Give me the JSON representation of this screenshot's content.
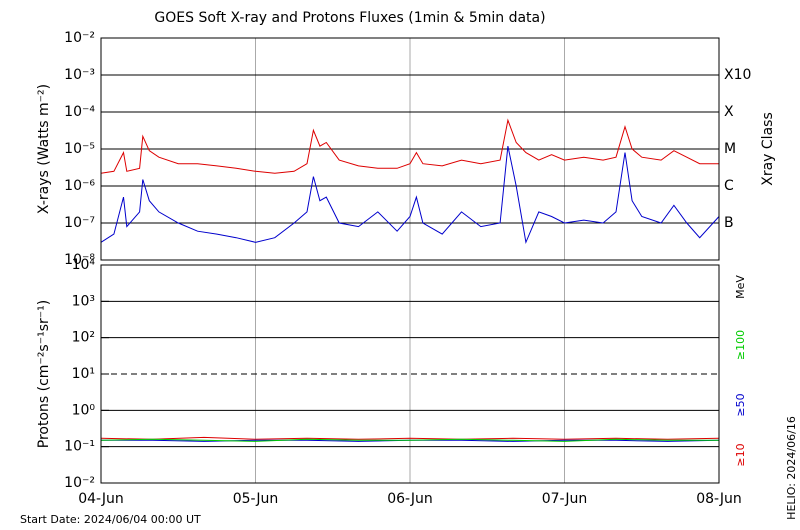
{
  "chart_data": [
    {
      "type": "line",
      "title": "GOES Soft X-ray and Protons Fluxes   (1min & 5min data)",
      "ylabel": "X-rays (Watts m⁻²)",
      "log": true,
      "grid": true,
      "xlim": [
        0,
        96
      ],
      "ylim": [
        1e-08,
        0.01
      ],
      "yticks": [
        {
          "value": 0.01,
          "label": "10⁻²"
        },
        {
          "value": 0.001,
          "label": "10⁻³"
        },
        {
          "value": 0.0001,
          "label": "10⁻⁴"
        },
        {
          "value": 1e-05,
          "label": "10⁻⁵"
        },
        {
          "value": 1e-06,
          "label": "10⁻⁶"
        },
        {
          "value": 1e-07,
          "label": "10⁻⁷"
        },
        {
          "value": 1e-08,
          "label": "10⁻⁸"
        }
      ],
      "y2label": "Xray Class",
      "y2ticks": [
        {
          "value": 0.001,
          "label": "X10"
        },
        {
          "value": 0.0001,
          "label": "X"
        },
        {
          "value": 1e-05,
          "label": "M"
        },
        {
          "value": 1e-06,
          "label": "C"
        },
        {
          "value": 1e-07,
          "label": "B"
        }
      ],
      "x": [
        0,
        2,
        3.5,
        4,
        6,
        6.5,
        7.5,
        9,
        12,
        15,
        18,
        21,
        24,
        27,
        30,
        32,
        33,
        34,
        35,
        37,
        40,
        43,
        46,
        48,
        49,
        50,
        53,
        56,
        59,
        62,
        63.2,
        64.5,
        66,
        68,
        70,
        72,
        75,
        78,
        80,
        81.4,
        82.5,
        84,
        87,
        89,
        91,
        93,
        96
      ],
      "series": [
        {
          "color": "#dd0000",
          "values": [
            2.2e-06,
            2.5e-06,
            8e-06,
            2.5e-06,
            3e-06,
            2.2e-05,
            9e-06,
            6e-06,
            4e-06,
            4e-06,
            3.5e-06,
            3e-06,
            2.5e-06,
            2.2e-06,
            2.5e-06,
            4e-06,
            3.2e-05,
            1.2e-05,
            1.5e-05,
            5e-06,
            3.5e-06,
            3e-06,
            3e-06,
            4e-06,
            8e-06,
            4e-06,
            3.5e-06,
            5e-06,
            4e-06,
            5e-06,
            6e-05,
            1.5e-05,
            8e-06,
            5e-06,
            7e-06,
            5e-06,
            6e-06,
            5e-06,
            6e-06,
            4e-05,
            1e-05,
            6e-06,
            5e-06,
            9e-06,
            6e-06,
            4e-06,
            4e-06
          ]
        },
        {
          "color": "#0000cc",
          "values": [
            3e-08,
            5e-08,
            5e-07,
            8e-08,
            2e-07,
            1.5e-06,
            4e-07,
            2e-07,
            1e-07,
            6e-08,
            5e-08,
            4e-08,
            3e-08,
            4e-08,
            1e-07,
            2e-07,
            1.8e-06,
            4e-07,
            5e-07,
            1e-07,
            8e-08,
            2e-07,
            6e-08,
            1.5e-07,
            5e-07,
            1e-07,
            5e-08,
            2e-07,
            8e-08,
            1e-07,
            1.2e-05,
            1e-06,
            3e-08,
            2e-07,
            1.5e-07,
            1e-07,
            1.2e-07,
            1e-07,
            2e-07,
            8e-06,
            4e-07,
            1.5e-07,
            1e-07,
            3e-07,
            1e-07,
            4e-08,
            1.5e-07
          ]
        }
      ]
    },
    {
      "type": "line",
      "ylabel": "Protons (cm⁻²s⁻¹sr⁻¹)",
      "log": true,
      "grid": true,
      "xlim": [
        0,
        96
      ],
      "ylim": [
        0.01,
        10000.0
      ],
      "xticks": [
        {
          "value": 0,
          "label": "04-Jun"
        },
        {
          "value": 24,
          "label": "05-Jun"
        },
        {
          "value": 48,
          "label": "06-Jun"
        },
        {
          "value": 72,
          "label": "07-Jun"
        },
        {
          "value": 96,
          "label": "08-Jun"
        }
      ],
      "yticks": [
        {
          "value": 10000.0,
          "label": "10⁴"
        },
        {
          "value": 1000.0,
          "label": "10³"
        },
        {
          "value": 100.0,
          "label": "10²"
        },
        {
          "value": 10,
          "label": "10¹"
        },
        {
          "value": 1,
          "label": "10⁰"
        },
        {
          "value": 0.1,
          "label": "10⁻¹"
        },
        {
          "value": 0.01,
          "label": "10⁻²"
        }
      ],
      "threshold": 10,
      "unit": "MeV",
      "x": [
        0,
        8,
        16,
        24,
        32,
        40,
        48,
        56,
        64,
        72,
        80,
        88,
        96
      ],
      "series": [
        {
          "name": "≥10",
          "color": "#dd0000",
          "values": [
            0.17,
            0.16,
            0.18,
            0.16,
            0.17,
            0.16,
            0.17,
            0.16,
            0.17,
            0.16,
            0.17,
            0.16,
            0.17
          ]
        },
        {
          "name": "≥50",
          "color": "#0000cc",
          "values": [
            0.15,
            0.15,
            0.14,
            0.15,
            0.15,
            0.14,
            0.15,
            0.15,
            0.14,
            0.15,
            0.15,
            0.14,
            0.15
          ]
        },
        {
          "name": "≥100",
          "color": "#00cc00",
          "values": [
            0.15,
            0.16,
            0.15,
            0.14,
            0.16,
            0.15,
            0.15,
            0.16,
            0.15,
            0.14,
            0.16,
            0.15,
            0.15
          ]
        }
      ]
    }
  ],
  "footer": "Start Date: 2024/06/04 00:00 UT",
  "stamp": "HELIO: 2024/06/16"
}
